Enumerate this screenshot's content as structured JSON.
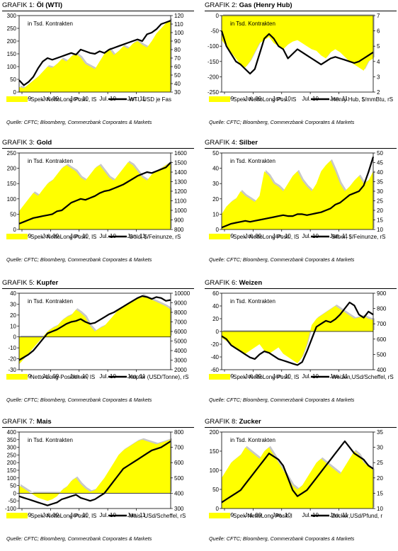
{
  "panels": [
    {
      "title_prefix": "GRAFIK 1:",
      "title": "Öl (WTI)",
      "unit_note": "in Tsd. Kontrakten",
      "source": "Quelle: CFTC; Bloomberg, Commerzbank Corporates & Markets"
    },
    {
      "title_prefix": "GRAFIK 2:",
      "title": "Gas (Henry Hub)",
      "unit_note": "in Tsd. Kontrakten",
      "source": "Quelle: CFTC; Bloomberg, Commerzbank Corporates & Markets"
    },
    {
      "title_prefix": "GRAFIK 3:",
      "title": "Gold",
      "unit_note": "in Tsd. Kontrakten",
      "source": "Quelle: CFTC; Bloomberg, Commerzbank Corporates & Markets"
    },
    {
      "title_prefix": "GRAFIK 4:",
      "title": "Silber",
      "unit_note": "in Tsd. Kontrakten",
      "source": "Quelle: CFTC; Bloomberg, Commerzbank Corporates & Markets"
    },
    {
      "title_prefix": "GRAFIK 5:",
      "title": "Kupfer",
      "unit_note": "in Tsd. Kontrakten",
      "source": "Quelle: CFTC; Bloomberg, Commerzbank Corporates & Markets"
    },
    {
      "title_prefix": "GRAFIK 6:",
      "title": "Weizen",
      "unit_note": "in Tsd. Kontrakten",
      "source": "Quelle: CFTC; Bloomberg, Commerzbank Corporates & Markets"
    },
    {
      "title_prefix": "GRAFIK 7:",
      "title": "Mais",
      "unit_note": "in Tsd. Kontrakten",
      "source": "Quelle: CFTC; Bloomberg, Commerzbank Corporates & Markets"
    },
    {
      "title_prefix": "GRAFIK 8:",
      "title": "Zucker",
      "unit_note": "in Tsd. Kontrakten",
      "source": "Quelle: CFTC; Bloomberg, Commerzbank Corporates & Markets"
    }
  ],
  "chart_data": [
    {
      "type": "area",
      "x_ticks": [
        "Jan. 09",
        "Jul. 09",
        "Jan. 10",
        "Jul. 10",
        "Jan. 11"
      ],
      "left_axis": {
        "min": 0,
        "max": 300,
        "step": 50
      },
      "right_axis": {
        "min": 30,
        "max": 120,
        "step": 10
      },
      "legend": [
        "Spek. NettoLong Posit., lS",
        "WTI, USD je Fas"
      ],
      "series": [
        {
          "name": "Spek. NettoLong Posit., lS",
          "axis": "left",
          "color": "#ffff00",
          "values": [
            20,
            15,
            30,
            45,
            60,
            80,
            100,
            95,
            110,
            130,
            120,
            140,
            150,
            135,
            110,
            100,
            90,
            120,
            150,
            170,
            145,
            160,
            180,
            170,
            190,
            200,
            185,
            175,
            200,
            230,
            250,
            270,
            285
          ]
        },
        {
          "name": "WTI, USD je Fas",
          "axis": "right",
          "color": "#000000",
          "values": [
            44,
            38,
            42,
            48,
            58,
            66,
            70,
            68,
            70,
            72,
            74,
            76,
            74,
            80,
            78,
            76,
            75,
            78,
            76,
            80,
            82,
            84,
            86,
            88,
            90,
            92,
            90,
            98,
            100,
            104,
            110,
            112,
            114
          ]
        }
      ]
    },
    {
      "type": "area",
      "x_ticks": [
        "Jan. 09",
        "Jul. 09",
        "Jan. 10",
        "Jul. 10",
        "Jan. 11"
      ],
      "left_axis": {
        "min": -250,
        "max": 0,
        "step": 50
      },
      "right_axis": {
        "min": 2,
        "max": 7,
        "step": 1
      },
      "legend": [
        "Spek. NettoLong Pos., lS",
        "Henry Hub, $/mmBtu, rS"
      ],
      "series": [
        {
          "name": "Spek. NettoLong Pos., lS",
          "axis": "left",
          "color": "#ffff00",
          "values": [
            -80,
            -100,
            -120,
            -140,
            -160,
            -170,
            -150,
            -120,
            -90,
            -80,
            -70,
            -90,
            -100,
            -110,
            -95,
            -85,
            -80,
            -90,
            -100,
            -110,
            -115,
            -130,
            -140,
            -120,
            -110,
            -120,
            -135,
            -150,
            -160,
            -170,
            -180,
            -150,
            -140
          ]
        },
        {
          "name": "Henry Hub, $/mmBtu, rS",
          "axis": "right",
          "color": "#000000",
          "values": [
            6,
            5,
            4.5,
            4,
            3.8,
            3.5,
            3.2,
            3.5,
            4.5,
            5.5,
            5.8,
            5.5,
            5,
            4.8,
            4.2,
            4.5,
            4.8,
            4.6,
            4.4,
            4.2,
            4,
            3.8,
            4,
            4.2,
            4.3,
            4.2,
            4.1,
            4,
            3.9,
            4,
            4.2,
            4.4,
            4.6
          ]
        }
      ]
    },
    {
      "type": "area",
      "x_ticks": [
        "Jan. 09",
        "Jul. 09",
        "Jan. 10",
        "Jul. 10",
        "Jan. 11"
      ],
      "left_axis": {
        "min": 0,
        "max": 250,
        "step": 50
      },
      "right_axis": {
        "min": 800,
        "max": 1600,
        "step": 100
      },
      "legend": [
        "Spek. NettoLong Posit., lS",
        "Gold, $/Feinunze, rS"
      ],
      "series": [
        {
          "name": "Spek. NettoLong Posit., lS",
          "axis": "left",
          "color": "#ffff00",
          "values": [
            60,
            80,
            100,
            120,
            110,
            130,
            150,
            160,
            180,
            200,
            210,
            200,
            190,
            170,
            160,
            180,
            200,
            210,
            190,
            170,
            160,
            180,
            200,
            220,
            210,
            190,
            170,
            160,
            180,
            190,
            200,
            210,
            220
          ]
        },
        {
          "name": "Gold, $/Feinunze, rS",
          "axis": "right",
          "color": "#000000",
          "values": [
            860,
            880,
            900,
            920,
            930,
            940,
            950,
            960,
            990,
            1000,
            1040,
            1080,
            1100,
            1120,
            1110,
            1130,
            1150,
            1180,
            1200,
            1210,
            1230,
            1250,
            1270,
            1300,
            1330,
            1360,
            1380,
            1400,
            1390,
            1410,
            1430,
            1450,
            1500
          ]
        }
      ]
    },
    {
      "type": "area",
      "x_ticks": [
        "Jan. 09",
        "Jul. 09",
        "Jan. 10",
        "Jul. 10",
        "Jan. 11"
      ],
      "left_axis": {
        "min": 0,
        "max": 50,
        "step": 10
      },
      "right_axis": {
        "min": 10,
        "max": 50,
        "step": 5
      },
      "legend": [
        "Spek. NettoLong Posit., lS",
        "Silber, $/Feinunze, rS"
      ],
      "series": [
        {
          "name": "Spek. NettoLong Posit., lS",
          "axis": "left",
          "color": "#ffff00",
          "values": [
            10,
            15,
            18,
            20,
            25,
            22,
            20,
            18,
            22,
            38,
            35,
            30,
            28,
            25,
            30,
            35,
            38,
            32,
            28,
            25,
            30,
            38,
            42,
            45,
            38,
            30,
            25,
            28,
            32,
            35,
            30,
            32,
            38
          ]
        },
        {
          "name": "Silber, $/Feinunze, rS",
          "axis": "right",
          "color": "#000000",
          "values": [
            11,
            12,
            13,
            13.5,
            14,
            14.5,
            14,
            14.5,
            15,
            15.5,
            16,
            16.5,
            17,
            17.5,
            17,
            17,
            18,
            18,
            17.5,
            18,
            18.5,
            19,
            20,
            21,
            23,
            24,
            26,
            28,
            29,
            30,
            33,
            40,
            48
          ]
        }
      ]
    },
    {
      "type": "area",
      "x_ticks": [
        "Jan. 09",
        "Jul. 09",
        "Jan. 10",
        "Jul. 10",
        "Jan. 11"
      ],
      "left_axis": {
        "min": -30,
        "max": 40,
        "step": 10
      },
      "right_axis": {
        "min": 2000,
        "max": 10000,
        "step": 1000
      },
      "legend": [
        "Netto-Long-Positionen, lS",
        "Kupfer (USD/Tonne), rS"
      ],
      "series": [
        {
          "name": "Netto-Long-Positionen, lS",
          "axis": "left",
          "color": "#ffff00",
          "values": [
            -25,
            -20,
            -15,
            -10,
            -5,
            0,
            5,
            8,
            10,
            15,
            18,
            20,
            25,
            22,
            18,
            10,
            5,
            8,
            10,
            15,
            20,
            25,
            28,
            30,
            32,
            35,
            38,
            36,
            34,
            32,
            30,
            28,
            25
          ]
        },
        {
          "name": "Kupfer (USD/Tonne), rS",
          "axis": "right",
          "color": "#000000",
          "values": [
            3000,
            3300,
            3600,
            4000,
            4600,
            5200,
            5800,
            6000,
            6200,
            6500,
            6800,
            7000,
            7100,
            7300,
            7000,
            6800,
            6900,
            7200,
            7500,
            7800,
            8000,
            8300,
            8600,
            8900,
            9200,
            9500,
            9700,
            9600,
            9400,
            9600,
            9500,
            9200,
            9300
          ]
        }
      ]
    },
    {
      "type": "area",
      "x_ticks": [
        "Jan. 09",
        "Jul. 09",
        "Jan. 10",
        "Jul. 10",
        "Jan. 11"
      ],
      "left_axis": {
        "min": -60,
        "max": 60,
        "step": 20
      },
      "right_axis": {
        "min": 400,
        "max": 900,
        "step": 100
      },
      "legend": [
        "Spek. NettoLong Posit., lS",
        "Weizen,USd/Scheffel, rS"
      ],
      "series": [
        {
          "name": "Spek. NettoLong Posit., lS",
          "axis": "left",
          "color": "#ffff00",
          "values": [
            -10,
            -15,
            -20,
            -25,
            -30,
            -35,
            -30,
            -25,
            -20,
            -30,
            -35,
            -30,
            -25,
            -35,
            -40,
            -45,
            -50,
            -40,
            -20,
            10,
            20,
            25,
            30,
            35,
            40,
            35,
            30,
            25,
            20,
            22,
            24,
            20,
            18
          ]
        },
        {
          "name": "Weizen,USd/Scheffel, rS",
          "axis": "right",
          "color": "#000000",
          "values": [
            620,
            600,
            560,
            540,
            520,
            500,
            480,
            470,
            500,
            520,
            510,
            490,
            470,
            460,
            450,
            440,
            430,
            450,
            520,
            600,
            680,
            700,
            720,
            710,
            730,
            760,
            800,
            840,
            820,
            760,
            740,
            780,
            760
          ]
        }
      ]
    },
    {
      "type": "area",
      "x_ticks": [
        "Jan. 09",
        "Jul. 09",
        "Jan. 10",
        "Jul. 10",
        "Jan. 11"
      ],
      "left_axis": {
        "min": -100,
        "max": 400,
        "step": 50
      },
      "right_axis": {
        "min": 300,
        "max": 800,
        "step": 100
      },
      "legend": [
        "Spek. NettoLong Posit., lS",
        "Mais, USd/Scheffel, rS"
      ],
      "series": [
        {
          "name": "Spek. NettoLong Posit., lS",
          "axis": "left",
          "color": "#ffff00",
          "values": [
            50,
            30,
            10,
            -10,
            -30,
            -40,
            -50,
            -40,
            -20,
            20,
            40,
            80,
            100,
            60,
            30,
            10,
            20,
            60,
            100,
            150,
            200,
            250,
            280,
            300,
            320,
            340,
            350,
            340,
            330,
            320,
            330,
            340,
            350
          ]
        },
        {
          "name": "Mais, USd/Scheffel, rS",
          "axis": "right",
          "color": "#000000",
          "values": [
            380,
            370,
            360,
            350,
            340,
            330,
            320,
            330,
            340,
            360,
            370,
            380,
            390,
            370,
            360,
            350,
            360,
            380,
            400,
            440,
            480,
            520,
            560,
            580,
            600,
            620,
            640,
            660,
            680,
            690,
            700,
            720,
            740
          ]
        }
      ]
    },
    {
      "type": "area",
      "x_ticks": [
        "Jan. 09",
        "Jul. 09",
        "Jan. 10",
        "Jul. 10",
        "Jan. 11"
      ],
      "left_axis": {
        "min": 0,
        "max": 200,
        "step": 50
      },
      "right_axis": {
        "min": 10,
        "max": 35,
        "step": 5
      },
      "legend": [
        "Spek NettoLong Posit.,l",
        "Zucker,USd/Pfund, r"
      ],
      "series": [
        {
          "name": "Spek NettoLong Posit.,l",
          "axis": "left",
          "color": "#ffff00",
          "values": [
            80,
            100,
            120,
            130,
            140,
            160,
            150,
            140,
            130,
            150,
            160,
            140,
            120,
            100,
            80,
            60,
            50,
            60,
            80,
            100,
            120,
            130,
            120,
            110,
            100,
            90,
            110,
            130,
            150,
            140,
            120,
            110,
            100
          ]
        },
        {
          "name": "Zucker,USd/Pfund, r",
          "axis": "right",
          "color": "#000000",
          "values": [
            12,
            13,
            14,
            15,
            16,
            18,
            20,
            22,
            24,
            26,
            28,
            27,
            26,
            24,
            20,
            16,
            14,
            15,
            16,
            18,
            20,
            22,
            24,
            26,
            28,
            30,
            32,
            30,
            28,
            27,
            26,
            24,
            23
          ]
        }
      ]
    }
  ]
}
